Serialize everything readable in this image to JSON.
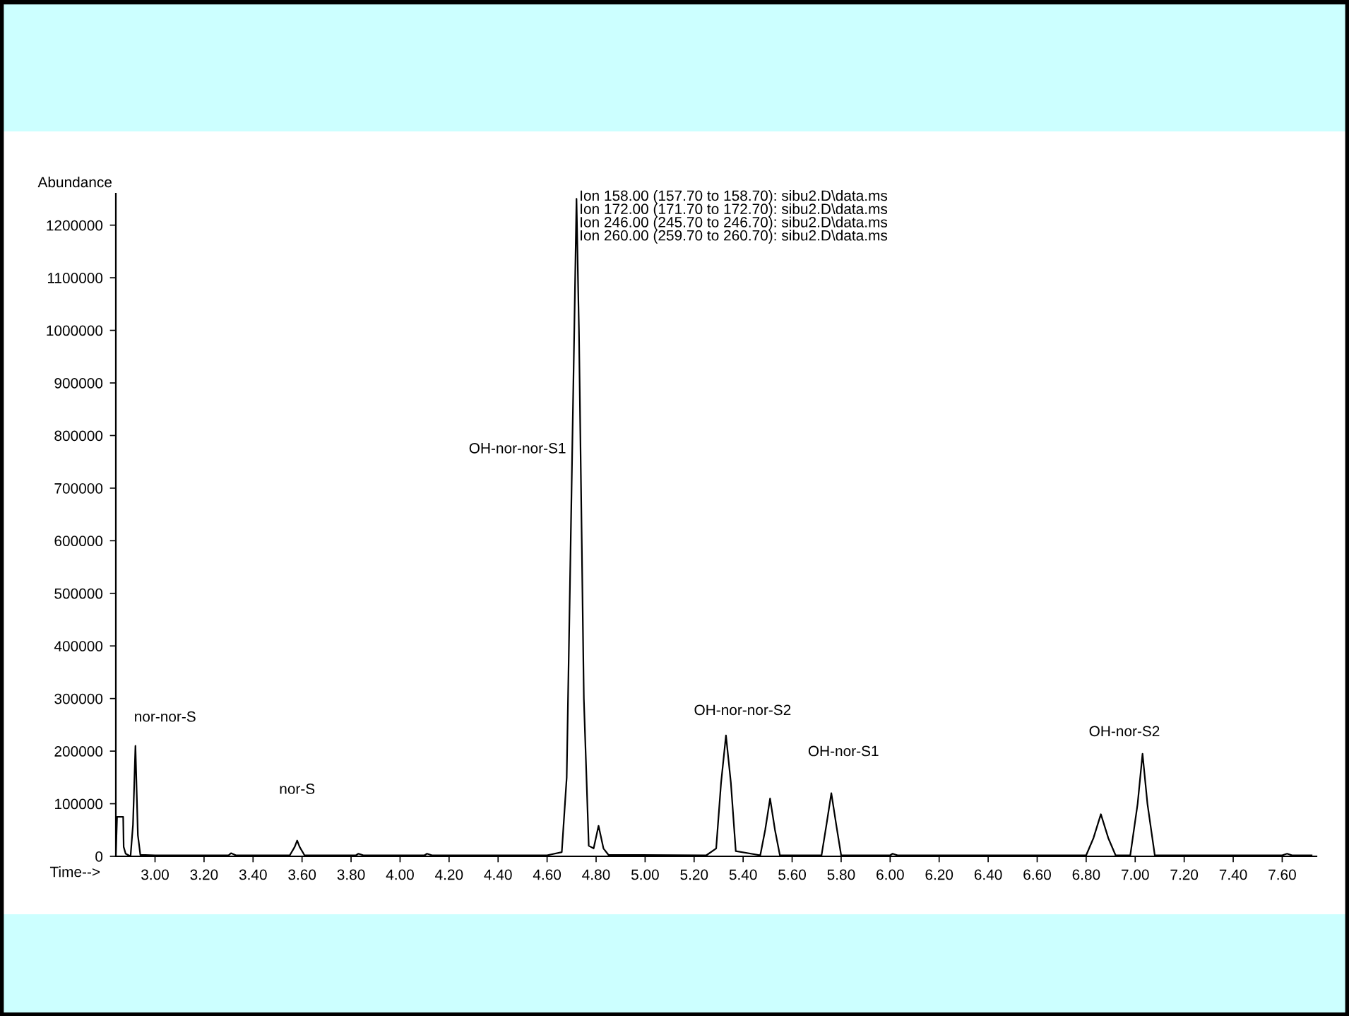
{
  "chart_data": {
    "type": "line",
    "xlabel": "Time-->",
    "ylabel": "Abundance",
    "annotations": [
      "Ion 158.00 (157.70 to 158.70): sibu2.D\\data.ms",
      "Ion 172.00 (171.70 to 172.70): sibu2.D\\data.ms",
      "Ion 246.00 (245.70 to 246.70): sibu2.D\\data.ms",
      "Ion 260.00 (259.70 to 260.70): sibu2.D\\data.ms",
      "nor-nor-S",
      "nor-S",
      "OH-nor-nor-S1",
      "OH-nor-nor-S2",
      "OH-nor-S1",
      "OH-nor-S2"
    ],
    "series": [
      {
        "color": "#000000",
        "x": [
          2.84,
          2.845,
          2.87,
          2.872,
          2.88,
          2.9,
          2.91,
          2.92,
          2.93,
          2.94,
          3.0,
          3.3,
          3.31,
          3.33,
          3.55,
          3.57,
          3.58,
          3.59,
          3.61,
          3.82,
          3.83,
          3.85,
          4.1,
          4.11,
          4.13,
          4.6,
          4.66,
          4.68,
          4.7,
          4.72,
          4.73,
          4.75,
          4.77,
          4.79,
          4.81,
          4.83,
          4.85,
          5.25,
          5.29,
          5.31,
          5.33,
          5.35,
          5.37,
          5.47,
          5.49,
          5.51,
          5.53,
          5.55,
          5.72,
          5.74,
          5.76,
          5.78,
          5.8,
          6.0,
          6.01,
          6.03,
          6.8,
          6.83,
          6.86,
          6.89,
          6.92,
          6.98,
          7.01,
          7.03,
          7.05,
          7.08,
          7.6,
          7.62,
          7.64,
          7.72
        ],
        "values": [
          0,
          75000,
          75000,
          18000,
          5000,
          0,
          60000,
          210000,
          40000,
          3000,
          2000,
          2000,
          6000,
          2000,
          2000,
          18000,
          30000,
          18000,
          2000,
          2000,
          5000,
          2000,
          2000,
          5000,
          2000,
          2000,
          8000,
          150000,
          700000,
          1250000,
          1000000,
          300000,
          20000,
          15000,
          58000,
          15000,
          3000,
          2000,
          15000,
          140000,
          230000,
          140000,
          10000,
          2000,
          50000,
          110000,
          50000,
          2000,
          2000,
          60000,
          120000,
          60000,
          2000,
          2000,
          5000,
          2000,
          2000,
          35000,
          80000,
          35000,
          2000,
          2000,
          100000,
          195000,
          100000,
          2000,
          2000,
          5000,
          2000,
          2000
        ]
      }
    ],
    "xlim": [
      2.84,
      7.74
    ],
    "ylim": [
      0,
      1260000
    ],
    "xticks": [
      {
        "value": 3,
        "label": "3.00"
      },
      {
        "value": 3.2,
        "label": "3.20"
      },
      {
        "value": 3.4,
        "label": "3.40"
      },
      {
        "value": 3.6,
        "label": "3.60"
      },
      {
        "value": 3.8,
        "label": "3.80"
      },
      {
        "value": 4,
        "label": "4.00"
      },
      {
        "value": 4.2,
        "label": "4.20"
      },
      {
        "value": 4.4,
        "label": "4.40"
      },
      {
        "value": 4.6,
        "label": "4.60"
      },
      {
        "value": 4.8,
        "label": "4.80"
      },
      {
        "value": 5,
        "label": "5.00"
      },
      {
        "value": 5.2,
        "label": "5.20"
      },
      {
        "value": 5.4,
        "label": "5.40"
      },
      {
        "value": 5.6,
        "label": "5.60"
      },
      {
        "value": 5.8,
        "label": "5.80"
      },
      {
        "value": 6,
        "label": "6.00"
      },
      {
        "value": 6.2,
        "label": "6.20"
      },
      {
        "value": 6.4,
        "label": "6.40"
      },
      {
        "value": 6.6,
        "label": "6.60"
      },
      {
        "value": 6.8,
        "label": "6.80"
      },
      {
        "value": 7,
        "label": "7.00"
      },
      {
        "value": 7.2,
        "label": "7.20"
      },
      {
        "value": 7.4,
        "label": "7.40"
      },
      {
        "value": 7.6,
        "label": "7.60"
      }
    ],
    "yticks": [
      0,
      100000,
      200000,
      300000,
      400000,
      500000,
      600000,
      700000,
      800000,
      900000,
      1000000,
      1100000,
      1200000
    ],
    "grid": false,
    "legend": false
  }
}
